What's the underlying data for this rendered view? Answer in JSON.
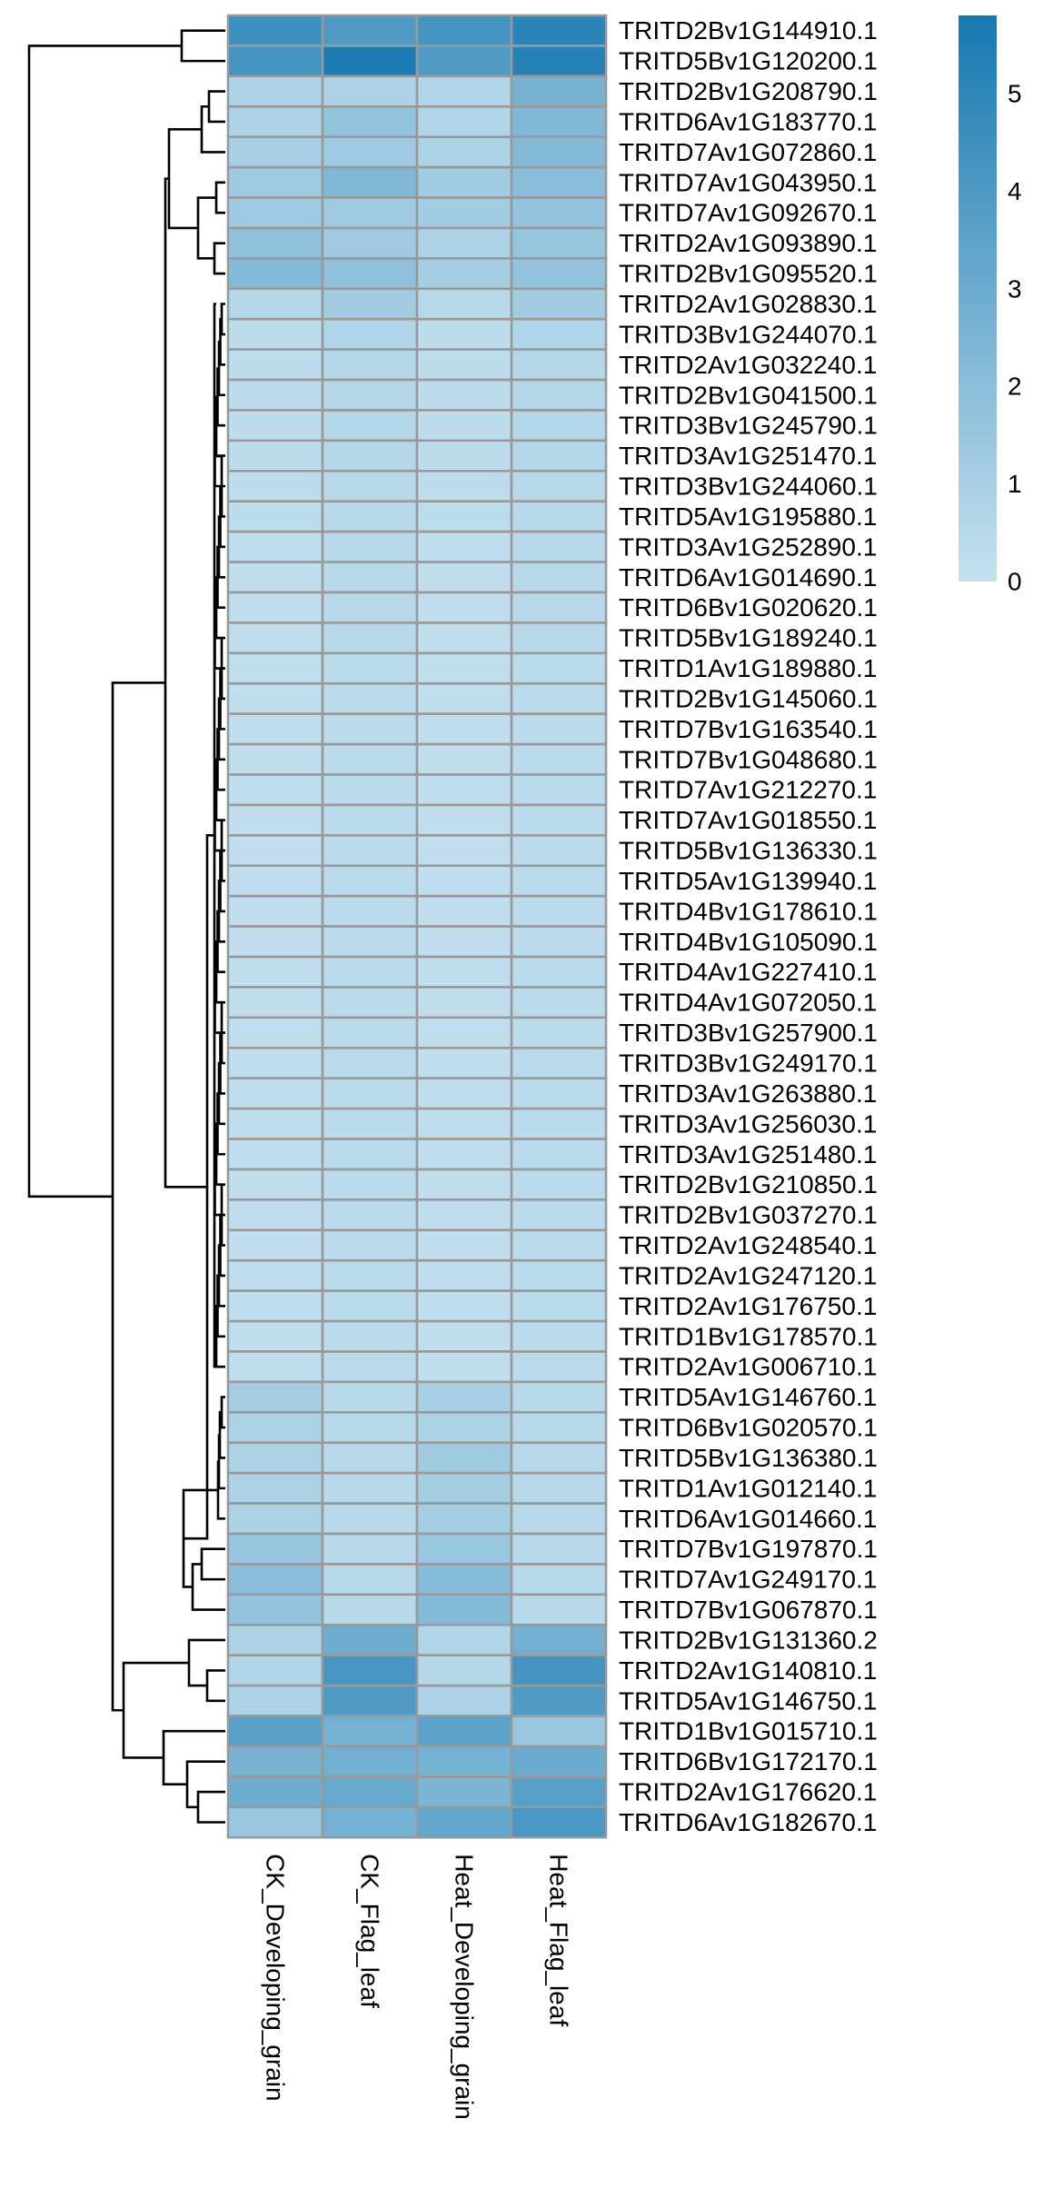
{
  "chart_data": {
    "type": "heatmap",
    "title": "",
    "columns": [
      "CK_Developing_grain",
      "CK_Flag_leaf",
      "Heat_Developing_grain",
      "Heat_Flag_leaf"
    ],
    "rows": [
      "TRITD2Bv1G144910.1",
      "TRITD5Bv1G120200.1",
      "TRITD2Bv1G208790.1",
      "TRITD6Av1G183770.1",
      "TRITD7Av1G072860.1",
      "TRITD7Av1G043950.1",
      "TRITD7Av1G092670.1",
      "TRITD2Av1G093890.1",
      "TRITD2Bv1G095520.1",
      "TRITD2Av1G028830.1",
      "TRITD3Bv1G244070.1",
      "TRITD2Av1G032240.1",
      "TRITD2Bv1G041500.1",
      "TRITD3Bv1G245790.1",
      "TRITD3Av1G251470.1",
      "TRITD3Bv1G244060.1",
      "TRITD5Av1G195880.1",
      "TRITD3Av1G252890.1",
      "TRITD6Av1G014690.1",
      "TRITD6Bv1G020620.1",
      "TRITD5Bv1G189240.1",
      "TRITD1Av1G189880.1",
      "TRITD2Bv1G145060.1",
      "TRITD7Bv1G163540.1",
      "TRITD7Bv1G048680.1",
      "TRITD7Av1G212270.1",
      "TRITD7Av1G018550.1",
      "TRITD5Bv1G136330.1",
      "TRITD5Av1G139940.1",
      "TRITD4Bv1G178610.1",
      "TRITD4Bv1G105090.1",
      "TRITD4Av1G227410.1",
      "TRITD4Av1G072050.1",
      "TRITD3Bv1G257900.1",
      "TRITD3Bv1G249170.1",
      "TRITD3Av1G263880.1",
      "TRITD3Av1G256030.1",
      "TRITD3Av1G251480.1",
      "TRITD2Bv1G210850.1",
      "TRITD2Bv1G037270.1",
      "TRITD2Av1G248540.1",
      "TRITD2Av1G247120.1",
      "TRITD2Av1G176750.1",
      "TRITD1Bv1G178570.1",
      "TRITD2Av1G006710.1",
      "TRITD5Av1G146760.1",
      "TRITD6Bv1G020570.1",
      "TRITD5Bv1G136380.1",
      "TRITD1Av1G012140.1",
      "TRITD6Av1G014660.1",
      "TRITD7Bv1G197870.1",
      "TRITD7Av1G249170.1",
      "TRITD7Bv1G067870.1",
      "TRITD2Bv1G131360.2",
      "TRITD2Av1G140810.1",
      "TRITD5Av1G146750.1",
      "TRITD1Bv1G015710.1",
      "TRITD6Bv1G172170.1",
      "TRITD2Av1G176620.1",
      "TRITD6Av1G182670.1"
    ],
    "values": [
      [
        4.5,
        3.9,
        4.3,
        5.1
      ],
      [
        4.3,
        5.6,
        3.9,
        5.3
      ],
      [
        0.8,
        0.8,
        0.7,
        2.6
      ],
      [
        0.8,
        1.7,
        0.7,
        2.3
      ],
      [
        1.0,
        1.3,
        0.9,
        2.2
      ],
      [
        1.3,
        2.3,
        1.2,
        2.0
      ],
      [
        1.3,
        1.3,
        1.2,
        1.7
      ],
      [
        1.8,
        1.3,
        0.9,
        1.6
      ],
      [
        2.2,
        1.8,
        1.1,
        1.7
      ],
      [
        0.6,
        1.2,
        0.5,
        1.2
      ],
      [
        0.3,
        0.7,
        0.3,
        0.7
      ],
      [
        0.3,
        0.6,
        0.3,
        0.6
      ],
      [
        0.3,
        0.6,
        0.3,
        0.6
      ],
      [
        0.3,
        0.6,
        0.3,
        0.6
      ],
      [
        0.3,
        0.6,
        0.3,
        0.6
      ],
      [
        0.3,
        0.5,
        0.3,
        0.5
      ],
      [
        0.3,
        0.5,
        0.3,
        0.5
      ],
      [
        0.2,
        0.5,
        0.2,
        0.5
      ],
      [
        0.2,
        0.5,
        0.2,
        0.5
      ],
      [
        0.2,
        0.5,
        0.2,
        0.5
      ],
      [
        0.2,
        0.5,
        0.2,
        0.5
      ],
      [
        0.2,
        0.4,
        0.2,
        0.4
      ],
      [
        0.2,
        0.4,
        0.2,
        0.4
      ],
      [
        0.2,
        0.4,
        0.2,
        0.4
      ],
      [
        0.2,
        0.4,
        0.2,
        0.4
      ],
      [
        0.2,
        0.4,
        0.2,
        0.4
      ],
      [
        0.2,
        0.4,
        0.2,
        0.4
      ],
      [
        0.2,
        0.4,
        0.2,
        0.4
      ],
      [
        0.2,
        0.4,
        0.2,
        0.4
      ],
      [
        0.2,
        0.4,
        0.2,
        0.4
      ],
      [
        0.2,
        0.4,
        0.2,
        0.4
      ],
      [
        0.2,
        0.4,
        0.2,
        0.4
      ],
      [
        0.2,
        0.4,
        0.2,
        0.4
      ],
      [
        0.2,
        0.4,
        0.2,
        0.4
      ],
      [
        0.2,
        0.4,
        0.2,
        0.4
      ],
      [
        0.2,
        0.4,
        0.2,
        0.4
      ],
      [
        0.2,
        0.4,
        0.2,
        0.4
      ],
      [
        0.2,
        0.4,
        0.2,
        0.4
      ],
      [
        0.2,
        0.4,
        0.2,
        0.4
      ],
      [
        0.2,
        0.4,
        0.2,
        0.4
      ],
      [
        0.2,
        0.4,
        0.2,
        0.4
      ],
      [
        0.2,
        0.4,
        0.2,
        0.4
      ],
      [
        0.2,
        0.4,
        0.2,
        0.4
      ],
      [
        0.2,
        0.4,
        0.2,
        0.4
      ],
      [
        0.2,
        0.4,
        0.2,
        0.4
      ],
      [
        1.1,
        0.5,
        1.0,
        0.5
      ],
      [
        0.9,
        0.5,
        0.9,
        0.5
      ],
      [
        0.9,
        0.5,
        1.3,
        0.5
      ],
      [
        0.9,
        0.5,
        1.1,
        0.5
      ],
      [
        0.9,
        0.5,
        1.1,
        0.5
      ],
      [
        1.6,
        0.5,
        1.5,
        0.5
      ],
      [
        2.0,
        0.5,
        2.1,
        0.5
      ],
      [
        1.7,
        0.5,
        2.2,
        0.5
      ],
      [
        0.8,
        2.9,
        0.7,
        2.8
      ],
      [
        0.7,
        4.2,
        0.6,
        4.3
      ],
      [
        0.9,
        3.9,
        0.8,
        3.9
      ],
      [
        3.6,
        2.7,
        3.5,
        1.5
      ],
      [
        2.6,
        2.8,
        2.7,
        3.0
      ],
      [
        2.9,
        3.1,
        2.5,
        3.6
      ],
      [
        1.5,
        2.7,
        3.3,
        4.1
      ]
    ],
    "legend": {
      "position": "top-right",
      "ticks": [
        "0",
        "1",
        "2",
        "3",
        "4",
        "5"
      ],
      "min": 0,
      "max": 5.8
    },
    "colors": {
      "low": "#c6e2ef",
      "high": "#1778b1",
      "cell_border": "#999999",
      "dendrogram": "#000000"
    },
    "dendrogram": "row clustering tree drawn on left"
  }
}
